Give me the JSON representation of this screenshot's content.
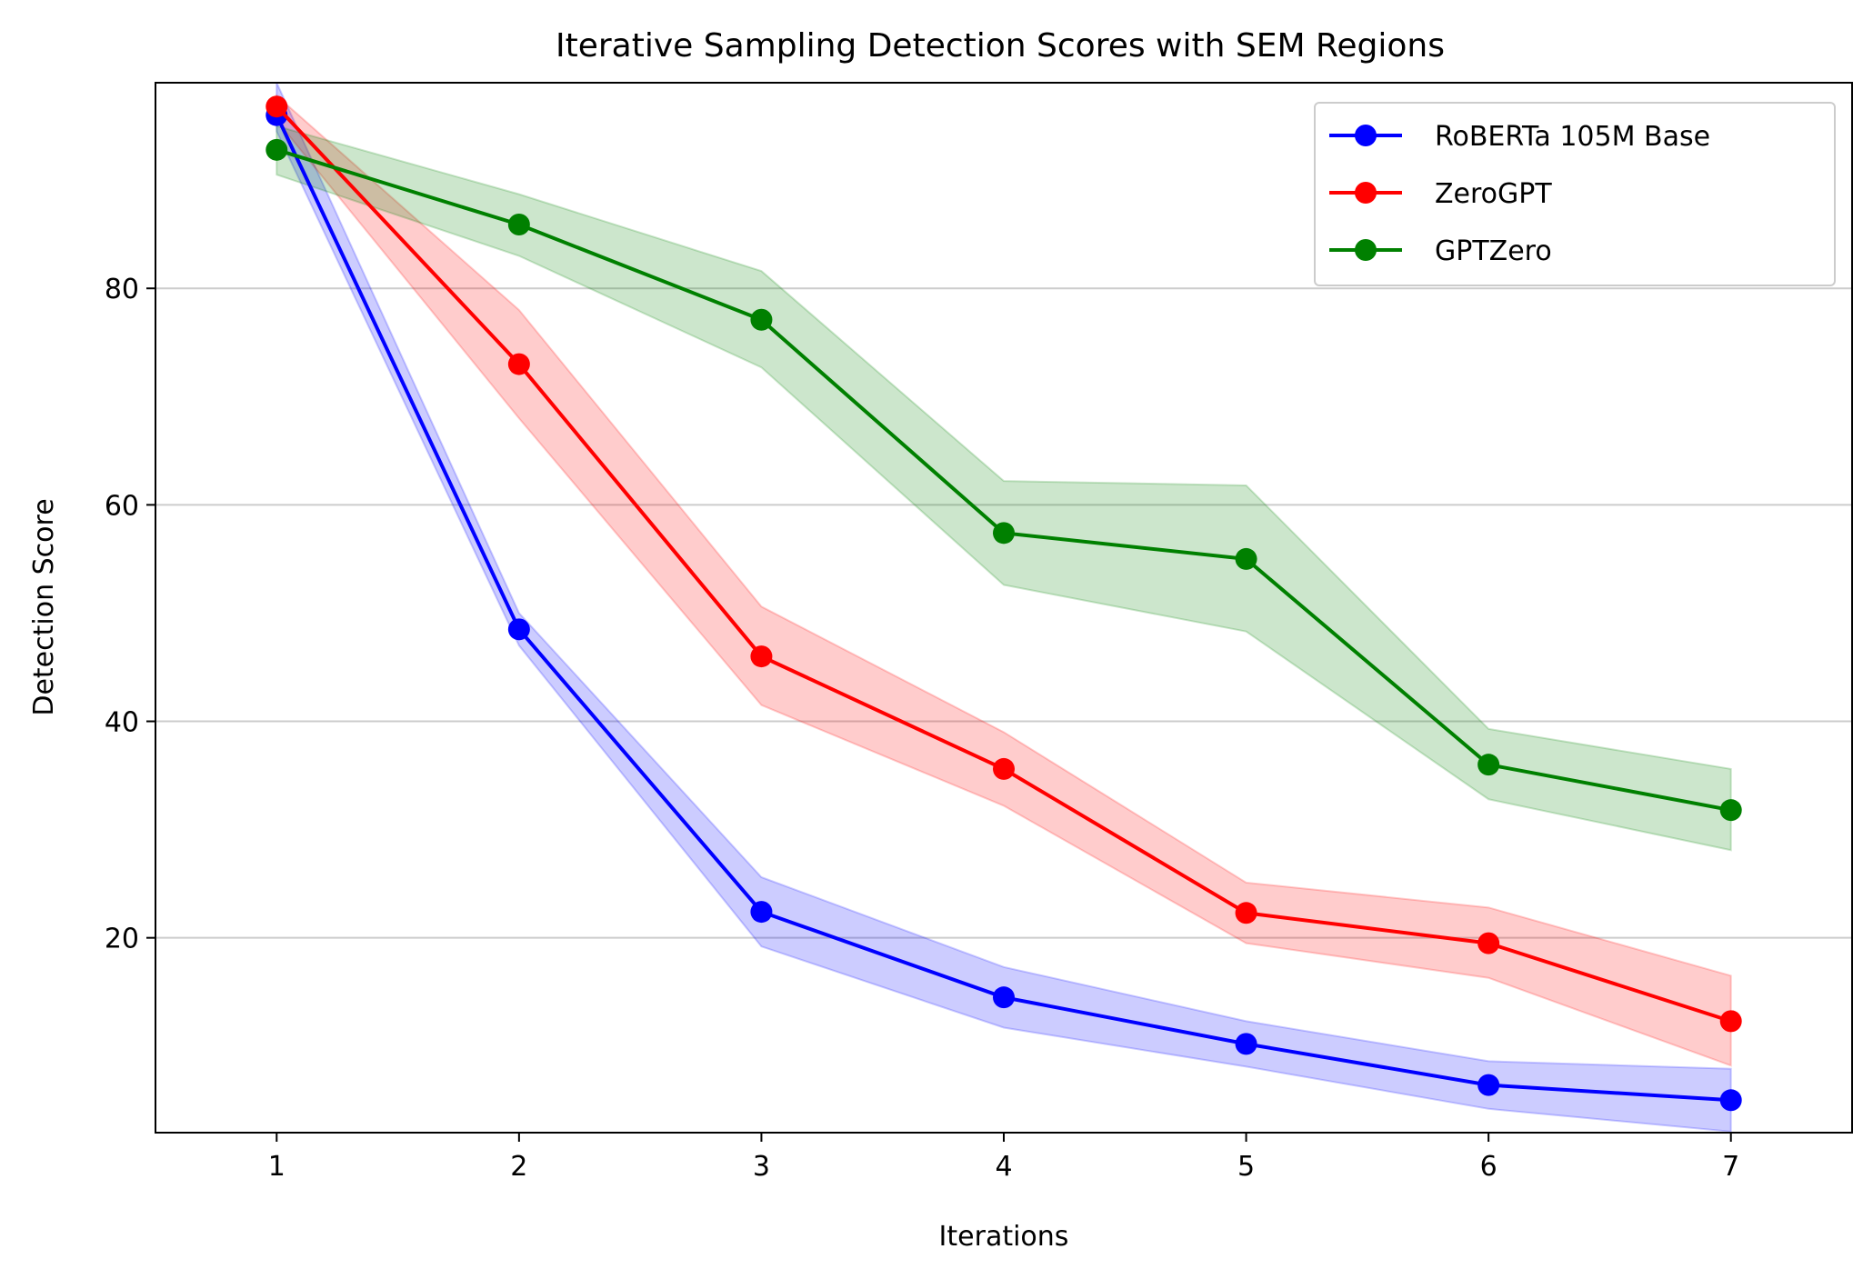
{
  "chart_data": {
    "type": "line",
    "title": "Iterative Sampling Detection Scores with SEM Regions",
    "xlabel": "Iterations",
    "ylabel": "Detection Score",
    "x": [
      1,
      2,
      3,
      4,
      5,
      6,
      7
    ],
    "xlim": [
      0.5,
      7.5
    ],
    "ylim": [
      2,
      99
    ],
    "xticks": [
      "1",
      "2",
      "3",
      "4",
      "5",
      "6",
      "7"
    ],
    "yticks": [
      "20",
      "40",
      "60",
      "80"
    ],
    "ytick_values": [
      20,
      40,
      60,
      80
    ],
    "grid": "y-axis only",
    "legend_position": "top-right",
    "series": [
      {
        "name": "RoBERTa 105M Base",
        "color": "#0000ff",
        "values": [
          96.0,
          48.5,
          22.4,
          14.5,
          10.2,
          6.4,
          5.0
        ],
        "sem_lower": [
          94.5,
          47.0,
          19.2,
          11.7,
          8.1,
          4.2,
          2.1
        ],
        "sem_upper": [
          99.0,
          50.0,
          25.6,
          17.3,
          12.3,
          8.6,
          7.9
        ]
      },
      {
        "name": "ZeroGPT",
        "color": "#ff0000",
        "values": [
          96.8,
          73.0,
          46.0,
          35.6,
          22.3,
          19.5,
          12.3
        ],
        "sem_lower": [
          95.5,
          68.0,
          41.5,
          32.2,
          19.5,
          16.3,
          8.2
        ],
        "sem_upper": [
          97.8,
          78.0,
          50.6,
          39.0,
          25.1,
          22.8,
          16.5
        ]
      },
      {
        "name": "GPTZero",
        "color": "#008000",
        "values": [
          92.8,
          85.9,
          77.1,
          57.4,
          55.0,
          36.0,
          31.8
        ],
        "sem_lower": [
          90.5,
          83.0,
          72.7,
          52.6,
          48.3,
          32.8,
          28.1
        ],
        "sem_upper": [
          95.0,
          88.7,
          81.6,
          62.2,
          61.8,
          39.3,
          35.6
        ]
      }
    ]
  }
}
